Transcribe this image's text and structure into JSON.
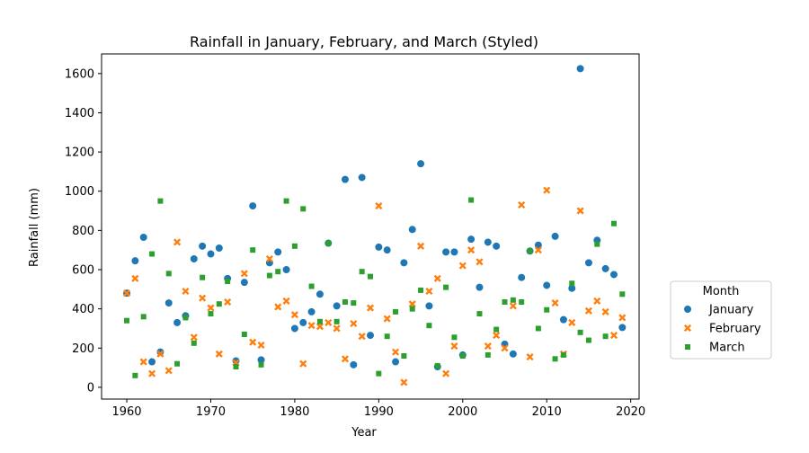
{
  "chart_data": {
    "type": "scatter",
    "title": "Rainfall in January, February, and March (Styled)",
    "xlabel": "Year",
    "ylabel": "Rainfall (mm)",
    "xlim": [
      1957,
      2021
    ],
    "ylim": [
      -60,
      1700
    ],
    "xticks": [
      1960,
      1970,
      1980,
      1990,
      2000,
      2010,
      2020
    ],
    "yticks": [
      0,
      200,
      400,
      600,
      800,
      1000,
      1200,
      1400,
      1600
    ],
    "grid": false,
    "legend": {
      "title": "Month",
      "placement": "outside-right"
    },
    "x": [
      1960,
      1961,
      1962,
      1963,
      1964,
      1965,
      1966,
      1967,
      1968,
      1969,
      1970,
      1971,
      1972,
      1973,
      1974,
      1975,
      1976,
      1977,
      1978,
      1979,
      1980,
      1981,
      1982,
      1983,
      1984,
      1985,
      1986,
      1987,
      1988,
      1989,
      1990,
      1991,
      1992,
      1993,
      1994,
      1995,
      1996,
      1997,
      1998,
      1999,
      2000,
      2001,
      2002,
      2003,
      2004,
      2005,
      2006,
      2007,
      2008,
      2009,
      2010,
      2011,
      2012,
      2013,
      2014,
      2015,
      2016,
      2017,
      2018,
      2019
    ],
    "series": [
      {
        "name": "January",
        "marker": "circle",
        "color": "#1f77b4",
        "values": [
          480,
          645,
          765,
          130,
          180,
          430,
          330,
          365,
          655,
          720,
          680,
          710,
          555,
          135,
          535,
          925,
          140,
          635,
          690,
          600,
          300,
          330,
          385,
          475,
          735,
          415,
          1060,
          115,
          1070,
          265,
          715,
          700,
          130,
          635,
          805,
          1140,
          415,
          105,
          690,
          690,
          165,
          755,
          510,
          740,
          720,
          220,
          170,
          560,
          695,
          725,
          520,
          770,
          345,
          505,
          1625,
          635,
          750,
          605,
          575,
          305
        ]
      },
      {
        "name": "February",
        "marker": "x",
        "color": "#ff7f0e",
        "values": [
          480,
          555,
          130,
          70,
          170,
          85,
          740,
          490,
          255,
          455,
          405,
          170,
          435,
          125,
          580,
          230,
          215,
          655,
          410,
          440,
          370,
          120,
          315,
          310,
          330,
          300,
          145,
          325,
          260,
          405,
          925,
          350,
          180,
          25,
          425,
          720,
          490,
          555,
          70,
          210,
          620,
          700,
          640,
          210,
          265,
          200,
          415,
          930,
          155,
          700,
          1005,
          430,
          170,
          330,
          900,
          390,
          440,
          385,
          265,
          355
        ]
      },
      {
        "name": "March",
        "marker": "square",
        "color": "#2ca02c",
        "values": [
          340,
          60,
          360,
          680,
          950,
          580,
          120,
          355,
          225,
          560,
          375,
          425,
          540,
          105,
          270,
          700,
          115,
          570,
          590,
          950,
          720,
          910,
          515,
          335,
          735,
          335,
          435,
          430,
          590,
          565,
          70,
          260,
          385,
          160,
          400,
          495,
          315,
          110,
          510,
          255,
          160,
          955,
          375,
          165,
          295,
          435,
          445,
          435,
          695,
          300,
          395,
          145,
          165,
          530,
          280,
          240,
          730,
          260,
          835,
          475
        ]
      }
    ]
  }
}
